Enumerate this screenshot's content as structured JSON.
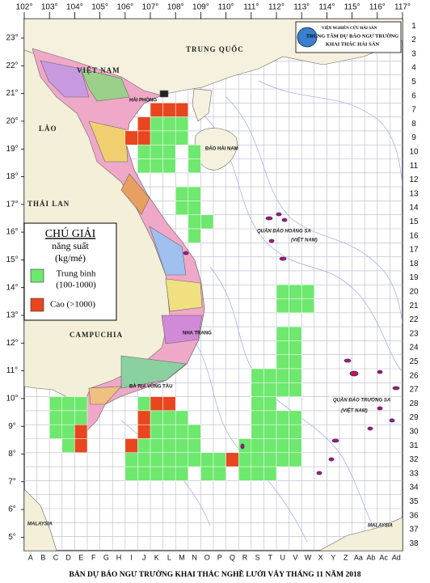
{
  "title": "BẢN DỰ BÁO NGƯ TRƯỜNG KHAI THÁC NGHỀ LƯỚI VÂY THÁNG 11 NĂM 2018",
  "header": {
    "institute": "VIỆN NGHIÊN CỨU HẢI SẢN",
    "center": "TRUNG TÂM DỰ BÁO NGƯ TRƯỜNG",
    "department": "KHAI THÁC HẢI SẢN"
  },
  "lon_ticks": [
    {
      "value": 102,
      "label": "102°"
    },
    {
      "value": 103,
      "label": "103°"
    },
    {
      "value": 104,
      "label": "104°"
    },
    {
      "value": 105,
      "label": "105°"
    },
    {
      "value": 106,
      "label": "106°"
    },
    {
      "value": 107,
      "label": "107°"
    },
    {
      "value": 108,
      "label": "108°"
    },
    {
      "value": 109,
      "label": "109°"
    },
    {
      "value": 110,
      "label": "110°"
    },
    {
      "value": 111,
      "label": "111°"
    },
    {
      "value": 112,
      "label": "112°"
    },
    {
      "value": 113,
      "label": "113°"
    },
    {
      "value": 114,
      "label": "114°"
    },
    {
      "value": 115,
      "label": "115°"
    },
    {
      "value": 116,
      "label": "116°"
    },
    {
      "value": 117,
      "label": "117°"
    }
  ],
  "lat_ticks": [
    {
      "value": 23,
      "label": "23°"
    },
    {
      "value": 22,
      "label": "22°"
    },
    {
      "value": 21,
      "label": "21°"
    },
    {
      "value": 20,
      "label": "20°"
    },
    {
      "value": 19,
      "label": "19°"
    },
    {
      "value": 18,
      "label": "18°"
    },
    {
      "value": 17,
      "label": "17°"
    },
    {
      "value": 16,
      "label": "16°"
    },
    {
      "value": 15,
      "label": "15°"
    },
    {
      "value": 14,
      "label": "14°"
    },
    {
      "value": 13,
      "label": "13°"
    },
    {
      "value": 12,
      "label": "12°"
    },
    {
      "value": 11,
      "label": "11°"
    },
    {
      "value": 10,
      "label": "10°"
    },
    {
      "value": 9,
      "label": "9°"
    },
    {
      "value": 8,
      "label": "8°"
    },
    {
      "value": 7,
      "label": "7°"
    },
    {
      "value": 6,
      "label": "6°"
    },
    {
      "value": 5,
      "label": "5°"
    }
  ],
  "grid_rows": [
    1,
    2,
    3,
    4,
    5,
    6,
    7,
    8,
    9,
    10,
    11,
    12,
    13,
    14,
    15,
    16,
    17,
    18,
    19,
    20,
    21,
    22,
    23,
    24,
    25,
    26,
    27,
    28,
    29,
    30,
    31,
    32,
    33,
    34,
    35,
    36,
    37,
    38
  ],
  "grid_columns": [
    "A",
    "B",
    "C",
    "D",
    "E",
    "F",
    "G",
    "H",
    "I",
    "J",
    "K",
    "L",
    "M",
    "N",
    "O",
    "P",
    "Q",
    "R",
    "S",
    "T",
    "U",
    "V",
    "W",
    "X",
    "Y",
    "Z",
    "Aa",
    "Ab",
    "Ac",
    "Ad"
  ],
  "legend": {
    "title": "CHÚ GIẢI",
    "subtitle": "năng suất",
    "unit": "(kg/mẻ)",
    "items": [
      {
        "name": "Trung bình",
        "range": "(100-1000)",
        "color": "#6ee86e"
      },
      {
        "name": "Cao (>1000)",
        "color": "#e8461e"
      }
    ]
  },
  "fishing_cells": [
    {
      "row": 7,
      "high": [
        "K",
        "L",
        "M"
      ],
      "medium": []
    },
    {
      "row": 8,
      "high": [
        "J"
      ],
      "medium": [
        "K",
        "L",
        "M"
      ]
    },
    {
      "row": 9,
      "high": [
        "I",
        "J"
      ],
      "medium": [
        "K",
        "L",
        "M"
      ]
    },
    {
      "row": 10,
      "high": [],
      "medium": [
        "J",
        "K",
        "L",
        "N"
      ]
    },
    {
      "row": 11,
      "high": [],
      "medium": [
        "J",
        "K",
        "L",
        "N"
      ]
    },
    {
      "row": 13,
      "high": [],
      "medium": [
        "M",
        "N"
      ]
    },
    {
      "row": 14,
      "high": [],
      "medium": [
        "M",
        "N"
      ]
    },
    {
      "row": 15,
      "high": [],
      "medium": [
        "N",
        "O"
      ]
    },
    {
      "row": 16,
      "high": [],
      "medium": [
        "N"
      ]
    },
    {
      "row": 20,
      "high": [],
      "medium": [
        "U",
        "V",
        "W"
      ]
    },
    {
      "row": 21,
      "high": [],
      "medium": [
        "U",
        "V",
        "W"
      ]
    },
    {
      "row": 23,
      "high": [],
      "medium": [
        "U",
        "V"
      ]
    },
    {
      "row": 24,
      "high": [],
      "medium": [
        "U",
        "V"
      ]
    },
    {
      "row": 25,
      "high": [],
      "medium": [
        "U",
        "V"
      ]
    },
    {
      "row": 26,
      "high": [],
      "medium": [
        "S",
        "T",
        "U",
        "V"
      ]
    },
    {
      "row": 27,
      "high": [],
      "medium": [
        "S",
        "T",
        "U",
        "V"
      ]
    },
    {
      "row": 28,
      "high": [
        "K",
        "L"
      ],
      "medium": [
        "C",
        "D",
        "E",
        "J",
        "S",
        "T"
      ]
    },
    {
      "row": 29,
      "high": [
        "J"
      ],
      "medium": [
        "C",
        "D",
        "E",
        "K",
        "L",
        "M",
        "S",
        "T",
        "U",
        "V"
      ]
    },
    {
      "row": 30,
      "high": [
        "E",
        "J"
      ],
      "medium": [
        "C",
        "D",
        "K",
        "L",
        "M",
        "N",
        "S",
        "T",
        "U",
        "V"
      ]
    },
    {
      "row": 31,
      "high": [
        "E",
        "I"
      ],
      "medium": [
        "D",
        "J",
        "K",
        "L",
        "M",
        "N",
        "R",
        "S",
        "T",
        "U",
        "V"
      ]
    },
    {
      "row": 32,
      "high": [
        "Q"
      ],
      "medium": [
        "I",
        "J",
        "K",
        "L",
        "M",
        "N",
        "O",
        "P",
        "R",
        "S",
        "T",
        "U",
        "V"
      ]
    },
    {
      "row": 33,
      "high": [],
      "medium": [
        "I",
        "J",
        "K",
        "L",
        "M",
        "O",
        "P",
        "R",
        "S",
        "T"
      ]
    }
  ],
  "map_labels": {
    "china": "TRUNG QUỐC",
    "vietnam": "VIỆT NAM",
    "laos": "LÀO",
    "thailand": "THÁI LAN",
    "cambodia": "CAMPUCHIA",
    "malaysia_west": "MALAYSIA",
    "malaysia_east": "MALAYSIA",
    "hai_phong": "HẢI PHÒNG",
    "hainan": "ĐẢO HẢI NAM",
    "nha_trang": "NHA TRANG",
    "vung_tau": "BÀ RỊA VŨNG TÀU",
    "paracel": "QUẦN ĐẢO HOÀNG SA",
    "paracel_country": "(VIỆT NAM)",
    "spratly": "QUẦN ĐẢO TRƯỜNG SA",
    "spratly_country": "(VIỆT NAM)"
  }
}
